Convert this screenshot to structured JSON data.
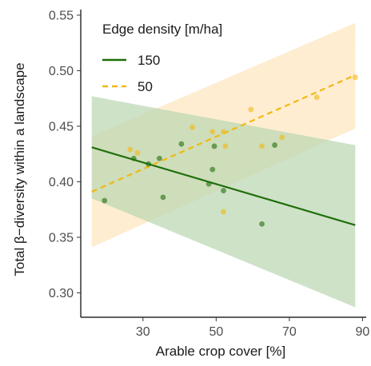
{
  "chart_data": {
    "type": "scatter",
    "xlabel": "Arable crop cover [%]",
    "ylabel": "Total β−diversity within a landscape",
    "xlim": [
      13,
      91
    ],
    "ylim": [
      0.278,
      0.555
    ],
    "xticks": [
      30,
      50,
      70,
      90
    ],
    "yticks": [
      0.3,
      0.35,
      0.4,
      0.45,
      0.5,
      0.55
    ],
    "grid": false,
    "legend": {
      "title": "Edge density [m/ha]",
      "position": "top-left"
    },
    "series": [
      {
        "name": "150",
        "color": "#1f6e0a",
        "line_style": "solid",
        "fit": {
          "x": [
            16,
            88
          ],
          "y": [
            0.431,
            0.361
          ]
        },
        "ci_upper": [
          0.477,
          0.433
        ],
        "ci_lower": [
          0.385,
          0.287
        ],
        "ci_fill": "#b9d6b0",
        "points": [
          {
            "x": 19.5,
            "y": 0.383
          },
          {
            "x": 27.5,
            "y": 0.421
          },
          {
            "x": 31.5,
            "y": 0.416
          },
          {
            "x": 34.5,
            "y": 0.421
          },
          {
            "x": 35.5,
            "y": 0.386
          },
          {
            "x": 40.5,
            "y": 0.434
          },
          {
            "x": 48.0,
            "y": 0.398
          },
          {
            "x": 49.0,
            "y": 0.411
          },
          {
            "x": 49.5,
            "y": 0.432
          },
          {
            "x": 52.0,
            "y": 0.392
          },
          {
            "x": 62.5,
            "y": 0.362
          },
          {
            "x": 66.0,
            "y": 0.433
          }
        ]
      },
      {
        "name": "50",
        "color": "#f2b90f",
        "line_style": "dashed",
        "fit": {
          "x": [
            16,
            88
          ],
          "y": [
            0.391,
            0.496
          ]
        },
        "ci_upper": [
          0.441,
          0.543
        ],
        "ci_lower": [
          0.341,
          0.448
        ],
        "ci_fill": "#fde6bd",
        "points": [
          {
            "x": 26.5,
            "y": 0.429
          },
          {
            "x": 28.5,
            "y": 0.426
          },
          {
            "x": 43.5,
            "y": 0.449
          },
          {
            "x": 49.0,
            "y": 0.445
          },
          {
            "x": 52.0,
            "y": 0.445
          },
          {
            "x": 52.5,
            "y": 0.432
          },
          {
            "x": 52.0,
            "y": 0.373
          },
          {
            "x": 59.5,
            "y": 0.465
          },
          {
            "x": 62.5,
            "y": 0.432
          },
          {
            "x": 68.0,
            "y": 0.44
          },
          {
            "x": 77.5,
            "y": 0.476
          },
          {
            "x": 88.0,
            "y": 0.494
          }
        ]
      }
    ]
  }
}
